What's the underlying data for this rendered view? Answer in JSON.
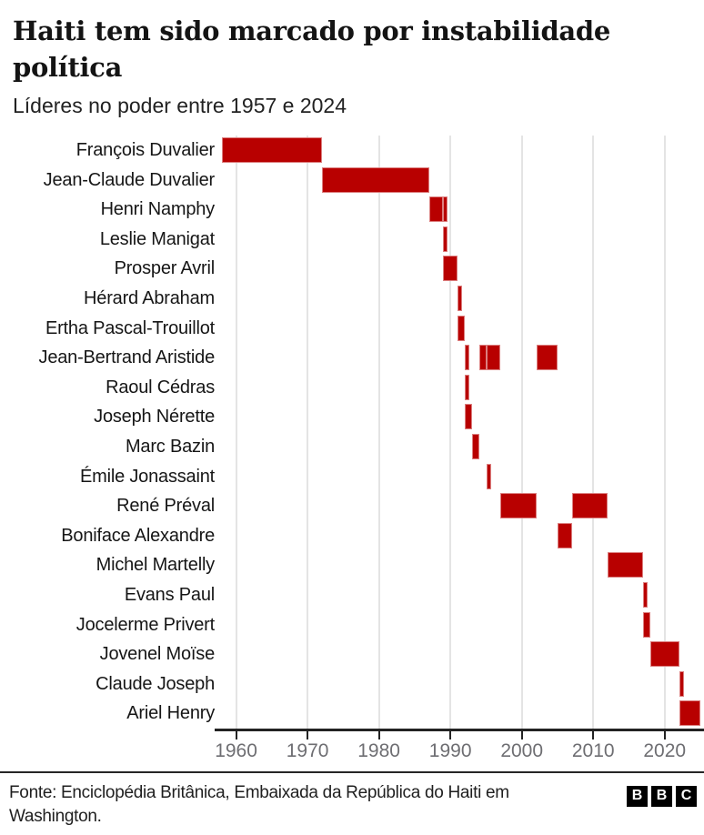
{
  "header": {
    "title": "Haiti tem sido marcado por instabilidade política",
    "subtitle": "Líderes no poder entre 1957 e 2024"
  },
  "chart_data": {
    "type": "bar",
    "variant": "timeline-gantt",
    "title": "Haiti tem sido marcado por instabilidade política",
    "subtitle": "Líderes no poder entre 1957 e 2024",
    "xlabel": "",
    "ylabel": "",
    "x_domain": [
      1957,
      2024
    ],
    "x_ticks": [
      1960,
      1970,
      1980,
      1990,
      2000,
      2010,
      2020
    ],
    "grid": true,
    "legend": false,
    "bar_color": "#b80000",
    "leaders": [
      {
        "name": "François Duvalier",
        "periods": [
          [
            1957,
            1971
          ]
        ]
      },
      {
        "name": "Jean-Claude Duvalier",
        "periods": [
          [
            1971,
            1986
          ]
        ]
      },
      {
        "name": "Henri Namphy",
        "periods": [
          [
            1986,
            1988
          ],
          [
            1988,
            1988
          ]
        ]
      },
      {
        "name": "Leslie Manigat",
        "periods": [
          [
            1988,
            1988
          ]
        ]
      },
      {
        "name": "Prosper Avril",
        "periods": [
          [
            1988,
            1990
          ]
        ]
      },
      {
        "name": "Hérard Abraham",
        "periods": [
          [
            1990,
            1990
          ]
        ]
      },
      {
        "name": "Ertha Pascal-Trouillot",
        "periods": [
          [
            1990,
            1991
          ]
        ]
      },
      {
        "name": "Jean-Bertrand Aristide",
        "periods": [
          [
            1991,
            1991
          ],
          [
            1993,
            1994
          ],
          [
            1994,
            1996
          ],
          [
            2001,
            2004
          ]
        ]
      },
      {
        "name": "Raoul Cédras",
        "periods": [
          [
            1991,
            1991
          ]
        ]
      },
      {
        "name": "Joseph Nérette",
        "periods": [
          [
            1991,
            1992
          ]
        ]
      },
      {
        "name": "Marc Bazin",
        "periods": [
          [
            1992,
            1993
          ]
        ]
      },
      {
        "name": "Émile Jonassaint",
        "periods": [
          [
            1994,
            1994
          ]
        ]
      },
      {
        "name": "René Préval",
        "periods": [
          [
            1996,
            2001
          ],
          [
            2006,
            2011
          ]
        ]
      },
      {
        "name": "Boniface Alexandre",
        "periods": [
          [
            2004,
            2006
          ]
        ]
      },
      {
        "name": "Michel Martelly",
        "periods": [
          [
            2011,
            2016
          ]
        ]
      },
      {
        "name": "Evans Paul",
        "periods": [
          [
            2016,
            2016
          ]
        ]
      },
      {
        "name": "Jocelerme Privert",
        "periods": [
          [
            2016,
            2017
          ]
        ]
      },
      {
        "name": "Jovenel Moïse",
        "periods": [
          [
            2017,
            2021
          ]
        ]
      },
      {
        "name": "Claude Joseph",
        "periods": [
          [
            2021,
            2021
          ]
        ]
      },
      {
        "name": "Ariel Henry",
        "periods": [
          [
            2021,
            2024
          ]
        ]
      }
    ]
  },
  "footer": {
    "source": "Fonte: Enciclopédia Britânica, Embaixada da República do Haiti em Washington.",
    "logo_letters": [
      "B",
      "B",
      "C"
    ]
  },
  "colors": {
    "bar": "#b80000",
    "axis": "#232323",
    "gridline": "#e4e4e4",
    "tick_label": "#6e6e72",
    "text": "#161616",
    "background": "#ffffff"
  }
}
